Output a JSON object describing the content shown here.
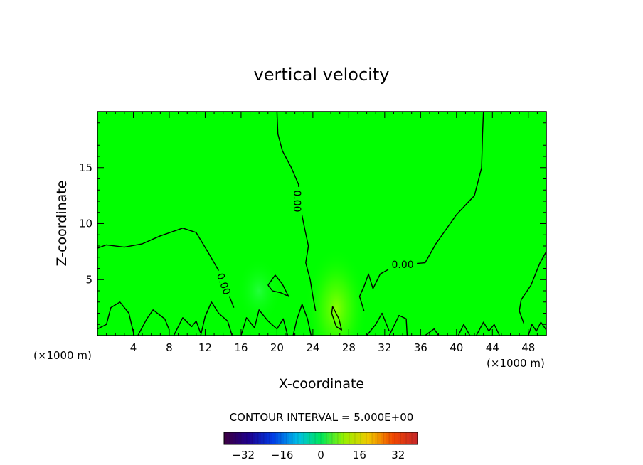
{
  "chart_data": {
    "type": "contour",
    "title": "vertical velocity",
    "xlabel": "X-coordinate",
    "ylabel": "Z-coordinate",
    "x_unit_label": "(×1000 m)",
    "x_unit_label_right": "(×1000 m)",
    "xlim": [
      0,
      50
    ],
    "ylim": [
      0,
      20
    ],
    "xticks": [
      4,
      8,
      12,
      16,
      20,
      24,
      28,
      32,
      36,
      40,
      44,
      48
    ],
    "yticks": [
      5,
      10,
      15
    ],
    "contour_interval_text": "CONTOUR INTERVAL = 5.000E+00",
    "contour_labels": [
      {
        "text": "0.00",
        "x": 22.2,
        "z": 12.0
      },
      {
        "text": "0.00",
        "x": 14.0,
        "z": 4.6
      },
      {
        "text": "0.00",
        "x": 34.0,
        "z": 6.3
      }
    ],
    "background_color": "#00ff00",
    "colorbar": {
      "min": -40,
      "max": 40,
      "ticks": [
        -32,
        -16,
        0,
        16,
        32
      ]
    },
    "zero_contours": [
      [
        [
          0,
          7.8
        ],
        [
          1,
          8.1
        ],
        [
          3,
          7.9
        ],
        [
          5,
          8.2
        ],
        [
          7,
          8.9
        ],
        [
          9.5,
          9.6
        ],
        [
          11,
          9.2
        ],
        [
          12.5,
          7.2
        ],
        [
          13.5,
          5.8
        ],
        [
          14.2,
          4.5
        ],
        [
          14.7,
          3.5
        ],
        [
          15.2,
          2.5
        ]
      ],
      [
        [
          20,
          20
        ],
        [
          20.1,
          18
        ],
        [
          20.6,
          16.5
        ],
        [
          21.6,
          15
        ],
        [
          22.4,
          13.5
        ],
        [
          22.6,
          11.5
        ],
        [
          23.1,
          9.5
        ],
        [
          23.5,
          8
        ],
        [
          23.2,
          6.5
        ],
        [
          23.7,
          5
        ],
        [
          24,
          3.5
        ],
        [
          24.3,
          2.2
        ]
      ],
      [
        [
          43,
          20
        ],
        [
          42.9,
          18
        ],
        [
          42.8,
          15
        ],
        [
          42,
          12.5
        ],
        [
          40,
          10.8
        ],
        [
          37.7,
          8.2
        ],
        [
          36.5,
          6.5
        ],
        [
          35,
          6.4
        ],
        [
          33.3,
          6.3
        ],
        [
          31.5,
          5.5
        ],
        [
          30.7,
          4.2
        ],
        [
          30.2,
          5.5
        ],
        [
          29.7,
          4.4
        ],
        [
          29.2,
          3.5
        ],
        [
          29.7,
          2.2
        ]
      ],
      [
        [
          50,
          7.5
        ],
        [
          49.3,
          6.5
        ],
        [
          48.3,
          4.5
        ],
        [
          47.2,
          3.2
        ],
        [
          47,
          2.2
        ],
        [
          47.5,
          1.1
        ]
      ],
      [
        [
          26.2,
          2.6
        ],
        [
          26.9,
          1.5
        ],
        [
          27.2,
          0.5
        ],
        [
          26.6,
          0.8
        ],
        [
          26.1,
          2.0
        ],
        [
          26.2,
          2.6
        ]
      ],
      [
        [
          19,
          4.5
        ],
        [
          19.8,
          5.4
        ],
        [
          20.6,
          4.6
        ],
        [
          21.3,
          3.5
        ],
        [
          20.5,
          3.8
        ],
        [
          19.5,
          4.0
        ],
        [
          19,
          4.5
        ]
      ],
      [
        [
          0,
          0.6
        ],
        [
          1,
          1
        ],
        [
          1.5,
          2.5
        ],
        [
          2.5,
          3
        ],
        [
          3.5,
          2
        ],
        [
          4,
          0.3
        ]
      ],
      [
        [
          4.5,
          0
        ],
        [
          5.5,
          1.5
        ],
        [
          6.2,
          2.3
        ],
        [
          7.5,
          1.5
        ],
        [
          8,
          0.5
        ]
      ],
      [
        [
          8.5,
          0
        ],
        [
          9.5,
          1.6
        ],
        [
          10.5,
          0.8
        ],
        [
          11,
          1.3
        ],
        [
          11.5,
          0.2
        ]
      ],
      [
        [
          11.5,
          0
        ],
        [
          12,
          1.7
        ],
        [
          12.7,
          3
        ],
        [
          13.5,
          2
        ],
        [
          14.5,
          1.3
        ],
        [
          15,
          0
        ]
      ],
      [
        [
          16,
          0
        ],
        [
          16.6,
          1.6
        ],
        [
          17.5,
          0.7
        ],
        [
          18,
          2.3
        ],
        [
          19,
          1.3
        ],
        [
          20,
          0.6
        ],
        [
          20.7,
          1.5
        ],
        [
          21.2,
          0
        ]
      ],
      [
        [
          21.8,
          0
        ],
        [
          22.2,
          1.4
        ],
        [
          22.8,
          2.8
        ],
        [
          23.4,
          1.5
        ],
        [
          23.8,
          0
        ]
      ],
      [
        [
          30,
          0
        ],
        [
          31,
          1
        ],
        [
          31.7,
          2
        ],
        [
          32.5,
          0.4
        ]
      ],
      [
        [
          32.5,
          0
        ],
        [
          33.6,
          1.8
        ],
        [
          34.4,
          1.5
        ],
        [
          34.5,
          0
        ]
      ],
      [
        [
          36.5,
          0
        ],
        [
          37.5,
          0.6
        ],
        [
          38,
          0
        ]
      ],
      [
        [
          40.2,
          0
        ],
        [
          40.8,
          1
        ],
        [
          41.5,
          0
        ]
      ],
      [
        [
          42.2,
          0
        ],
        [
          43,
          1.2
        ],
        [
          43.6,
          0.4
        ],
        [
          44.2,
          1
        ],
        [
          44.8,
          0
        ]
      ],
      [
        [
          48,
          0
        ],
        [
          48.4,
          1
        ],
        [
          48.9,
          0.4
        ],
        [
          49.4,
          1.2
        ],
        [
          50,
          0.5
        ]
      ]
    ],
    "extrema": [
      {
        "x": 26.6,
        "z": 2.4,
        "value": 12,
        "radius_x": 3.5,
        "radius_z": 5.5
      },
      {
        "x": 18.0,
        "z": 4.0,
        "value": -4,
        "radius_x": 2.5,
        "radius_z": 3.0
      }
    ]
  }
}
